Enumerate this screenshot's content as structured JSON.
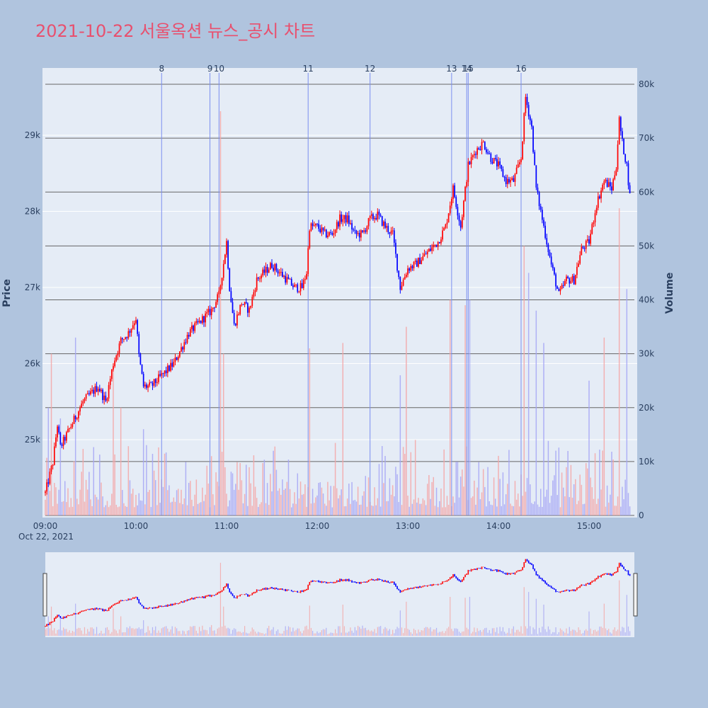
{
  "title": "2021-10-22 서울옥션 뉴스_공시 차트",
  "colors": {
    "page_bg": "#b0c4de",
    "plot_bg": "#e5ecf6",
    "up": "#ff0000",
    "down": "#0000ff",
    "volume_up": "#f4a6a6",
    "volume_down": "#a6a6f4",
    "news_line": "#7b8ff0",
    "title": "#e8506e"
  },
  "chart_data": {
    "type": "candlestick",
    "yaxis_title": "Price",
    "y2axis_title": "Volume",
    "price_ylim": [
      24000,
      29800
    ],
    "volume_ylim": [
      0,
      80000
    ],
    "x_start": "09:00",
    "x_end": "15:30",
    "x_ticks": [
      "09:00",
      "10:00",
      "11:00",
      "12:00",
      "13:00",
      "14:00",
      "15:00"
    ],
    "x_date_label": "Oct 22, 2021",
    "price_ticks": [
      {
        "value": 25000,
        "label": "25k"
      },
      {
        "value": 26000,
        "label": "26k"
      },
      {
        "value": 27000,
        "label": "27k"
      },
      {
        "value": 28000,
        "label": "28k"
      },
      {
        "value": 29000,
        "label": "29k"
      }
    ],
    "volume_ticks": [
      {
        "value": 0,
        "label": "0"
      },
      {
        "value": 10000,
        "label": "10k"
      },
      {
        "value": 20000,
        "label": "20k"
      },
      {
        "value": 30000,
        "label": "30k"
      },
      {
        "value": 40000,
        "label": "40k"
      },
      {
        "value": 50000,
        "label": "50k"
      },
      {
        "value": 60000,
        "label": "60k"
      },
      {
        "value": 70000,
        "label": "70k"
      },
      {
        "value": 80000,
        "label": "80k"
      }
    ],
    "news_markers": [
      {
        "label": "8",
        "time": "10:17"
      },
      {
        "label": "9",
        "time": "10:49"
      },
      {
        "label": "10",
        "time": "10:55"
      },
      {
        "label": "11",
        "time": "11:54"
      },
      {
        "label": "12",
        "time": "12:35"
      },
      {
        "label": "13",
        "time": "13:29"
      },
      {
        "label": "14",
        "time": "13:39"
      },
      {
        "label": "15",
        "time": "13:40"
      },
      {
        "label": "16",
        "time": "14:15"
      }
    ],
    "price_keypoints": [
      [
        "09:00",
        24300
      ],
      [
        "09:05",
        24700
      ],
      [
        "09:08",
        25200
      ],
      [
        "09:10",
        24900
      ],
      [
        "09:15",
        25100
      ],
      [
        "09:20",
        25300
      ],
      [
        "09:25",
        25500
      ],
      [
        "09:30",
        25600
      ],
      [
        "09:35",
        25700
      ],
      [
        "09:40",
        25500
      ],
      [
        "09:45",
        26000
      ],
      [
        "09:50",
        26300
      ],
      [
        "09:55",
        26400
      ],
      [
        "10:00",
        26600
      ],
      [
        "10:02",
        26100
      ],
      [
        "10:05",
        25700
      ],
      [
        "10:10",
        25700
      ],
      [
        "10:15",
        25800
      ],
      [
        "10:20",
        25900
      ],
      [
        "10:25",
        26000
      ],
      [
        "10:30",
        26200
      ],
      [
        "10:35",
        26400
      ],
      [
        "10:40",
        26500
      ],
      [
        "10:45",
        26600
      ],
      [
        "10:50",
        26700
      ],
      [
        "10:55",
        26900
      ],
      [
        "11:00",
        27600
      ],
      [
        "11:02",
        27000
      ],
      [
        "11:05",
        26500
      ],
      [
        "11:10",
        26800
      ],
      [
        "11:15",
        26700
      ],
      [
        "11:20",
        27100
      ],
      [
        "11:25",
        27200
      ],
      [
        "11:30",
        27300
      ],
      [
        "11:35",
        27200
      ],
      [
        "11:40",
        27100
      ],
      [
        "11:45",
        27000
      ],
      [
        "11:50",
        27000
      ],
      [
        "11:53",
        27200
      ],
      [
        "11:55",
        27800
      ],
      [
        "12:00",
        27800
      ],
      [
        "12:05",
        27700
      ],
      [
        "12:10",
        27700
      ],
      [
        "12:15",
        27900
      ],
      [
        "12:20",
        27900
      ],
      [
        "12:25",
        27700
      ],
      [
        "12:30",
        27700
      ],
      [
        "12:35",
        27900
      ],
      [
        "12:40",
        27950
      ],
      [
        "12:45",
        27800
      ],
      [
        "12:50",
        27700
      ],
      [
        "12:55",
        27000
      ],
      [
        "13:00",
        27250
      ],
      [
        "13:05",
        27300
      ],
      [
        "13:10",
        27400
      ],
      [
        "13:15",
        27500
      ],
      [
        "13:20",
        27600
      ],
      [
        "13:25",
        27800
      ],
      [
        "13:30",
        28300
      ],
      [
        "13:35",
        27800
      ],
      [
        "13:40",
        28600
      ],
      [
        "13:45",
        28800
      ],
      [
        "13:50",
        28900
      ],
      [
        "13:55",
        28700
      ],
      [
        "14:00",
        28600
      ],
      [
        "14:05",
        28400
      ],
      [
        "14:10",
        28400
      ],
      [
        "14:15",
        28700
      ],
      [
        "14:18",
        29500
      ],
      [
        "14:22",
        29100
      ],
      [
        "14:25",
        28300
      ],
      [
        "14:30",
        27800
      ],
      [
        "14:35",
        27300
      ],
      [
        "14:40",
        26900
      ],
      [
        "14:45",
        27100
      ],
      [
        "14:50",
        27100
      ],
      [
        "14:55",
        27500
      ],
      [
        "15:00",
        27600
      ],
      [
        "15:05",
        28100
      ],
      [
        "15:10",
        28400
      ],
      [
        "15:15",
        28300
      ],
      [
        "15:18",
        28600
      ],
      [
        "15:20",
        29200
      ],
      [
        "15:22",
        28900
      ],
      [
        "15:25",
        28600
      ],
      [
        "15:27",
        28200
      ]
    ],
    "volume_peak_bars": [
      [
        "09:02",
        20000
      ],
      [
        "09:04",
        30000
      ],
      [
        "09:10",
        18000
      ],
      [
        "09:20",
        33000
      ],
      [
        "09:45",
        28000
      ],
      [
        "09:50",
        20000
      ],
      [
        "10:05",
        16000
      ],
      [
        "10:50",
        11000
      ],
      [
        "10:56",
        75000
      ],
      [
        "10:58",
        30000
      ],
      [
        "11:55",
        31000
      ],
      [
        "12:17",
        32000
      ],
      [
        "12:55",
        26000
      ],
      [
        "12:59",
        35000
      ],
      [
        "13:28",
        40000
      ],
      [
        "13:38",
        39000
      ],
      [
        "13:41",
        40000
      ],
      [
        "14:17",
        50000
      ],
      [
        "14:20",
        45000
      ],
      [
        "14:25",
        38000
      ],
      [
        "14:30",
        32000
      ],
      [
        "15:00",
        25000
      ],
      [
        "15:10",
        33000
      ],
      [
        "15:20",
        57000
      ],
      [
        "15:25",
        42000
      ]
    ]
  }
}
